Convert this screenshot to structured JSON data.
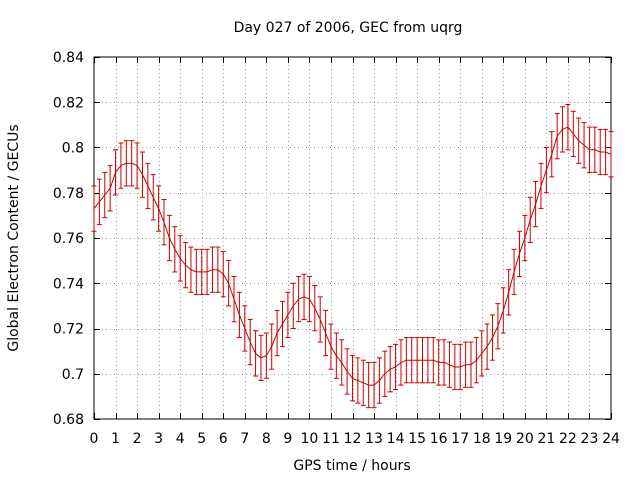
{
  "chart_data": {
    "type": "line",
    "title": "Day 027 of 2006, GEC from uqrg",
    "xlabel": "GPS time / hours",
    "ylabel": "Global Electron Content / GECUs",
    "xlim": [
      0,
      24
    ],
    "ylim": [
      0.68,
      0.84
    ],
    "x_ticks": [
      0,
      1,
      2,
      3,
      4,
      5,
      6,
      7,
      8,
      9,
      10,
      11,
      12,
      13,
      14,
      15,
      16,
      17,
      18,
      19,
      20,
      21,
      22,
      23,
      24
    ],
    "x_tick_labels": [
      "0",
      "1",
      "2",
      "3",
      "4",
      "5",
      "6",
      "7",
      "8",
      "9",
      "10",
      "11",
      "12",
      "13",
      "14",
      "15",
      "16",
      "17",
      "18",
      "19",
      "20",
      "21",
      "22",
      "23",
      "24"
    ],
    "y_ticks": [
      0.68,
      0.7,
      0.72,
      0.74,
      0.76,
      0.78,
      0.8,
      0.82,
      0.84
    ],
    "y_tick_labels": [
      "0.68",
      "0.7",
      "0.72",
      "0.74",
      "0.76",
      "0.78",
      "0.8",
      "0.82",
      "0.84"
    ],
    "grid": true,
    "series": [
      {
        "name": "GEC",
        "color": "#cc0000",
        "error": 0.01,
        "x": [
          0.0,
          0.25,
          0.5,
          0.75,
          1.0,
          1.25,
          1.5,
          1.75,
          2.0,
          2.25,
          2.5,
          2.75,
          3.0,
          3.25,
          3.5,
          3.75,
          4.0,
          4.25,
          4.5,
          4.75,
          5.0,
          5.25,
          5.5,
          5.75,
          6.0,
          6.25,
          6.5,
          6.75,
          7.0,
          7.25,
          7.5,
          7.75,
          8.0,
          8.25,
          8.5,
          8.75,
          9.0,
          9.25,
          9.5,
          9.75,
          10.0,
          10.25,
          10.5,
          10.75,
          11.0,
          11.25,
          11.5,
          11.75,
          12.0,
          12.25,
          12.5,
          12.75,
          13.0,
          13.25,
          13.5,
          13.75,
          14.0,
          14.25,
          14.5,
          14.75,
          15.0,
          15.25,
          15.5,
          15.75,
          16.0,
          16.25,
          16.5,
          16.75,
          17.0,
          17.25,
          17.5,
          17.75,
          18.0,
          18.25,
          18.5,
          18.75,
          19.0,
          19.25,
          19.5,
          19.75,
          20.0,
          20.25,
          20.5,
          20.75,
          21.0,
          21.25,
          21.5,
          21.75,
          22.0,
          22.25,
          22.5,
          22.75,
          23.0,
          23.25,
          23.5,
          23.75,
          24.0
        ],
        "y": [
          0.773,
          0.776,
          0.779,
          0.782,
          0.789,
          0.792,
          0.793,
          0.793,
          0.792,
          0.788,
          0.783,
          0.778,
          0.773,
          0.767,
          0.76,
          0.755,
          0.751,
          0.748,
          0.746,
          0.745,
          0.745,
          0.745,
          0.746,
          0.746,
          0.744,
          0.74,
          0.733,
          0.726,
          0.72,
          0.714,
          0.709,
          0.707,
          0.708,
          0.712,
          0.718,
          0.722,
          0.726,
          0.73,
          0.733,
          0.734,
          0.733,
          0.729,
          0.724,
          0.718,
          0.712,
          0.708,
          0.705,
          0.701,
          0.698,
          0.697,
          0.696,
          0.695,
          0.695,
          0.697,
          0.7,
          0.702,
          0.703,
          0.705,
          0.706,
          0.706,
          0.706,
          0.706,
          0.706,
          0.706,
          0.705,
          0.705,
          0.704,
          0.703,
          0.703,
          0.704,
          0.704,
          0.706,
          0.709,
          0.712,
          0.716,
          0.721,
          0.728,
          0.736,
          0.745,
          0.753,
          0.76,
          0.768,
          0.775,
          0.783,
          0.79,
          0.797,
          0.805,
          0.808,
          0.809,
          0.806,
          0.803,
          0.801,
          0.799,
          0.799,
          0.798,
          0.798,
          0.797
        ]
      }
    ]
  }
}
